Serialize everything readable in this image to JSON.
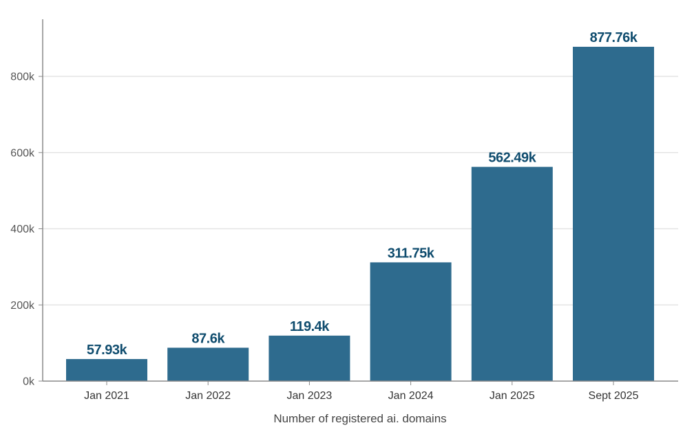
{
  "chart_data": {
    "type": "bar",
    "categories": [
      "Jan 2021",
      "Jan 2022",
      "Jan 2023",
      "Jan 2024",
      "Jan 2025",
      "Sept 2025"
    ],
    "values": [
      57930,
      87600,
      119400,
      311750,
      562490,
      877760
    ],
    "data_labels": [
      "57.93k",
      "87.6k",
      "119.4k",
      "311.75k",
      "562.49k",
      "877.76k"
    ],
    "xlabel": "Number of registered ai. domains",
    "ylabel": "",
    "ylim": [
      0,
      950000
    ],
    "y_ticks": [
      0,
      200000,
      400000,
      600000,
      800000
    ],
    "y_tick_labels": [
      "0k",
      "200k",
      "400k",
      "600k",
      "800k"
    ],
    "grid": "horizontal",
    "colors": {
      "bar": "#2e6b8e",
      "data_label": "#0f4c6e",
      "grid": "#e4e4e4",
      "axis": "#888888"
    }
  }
}
